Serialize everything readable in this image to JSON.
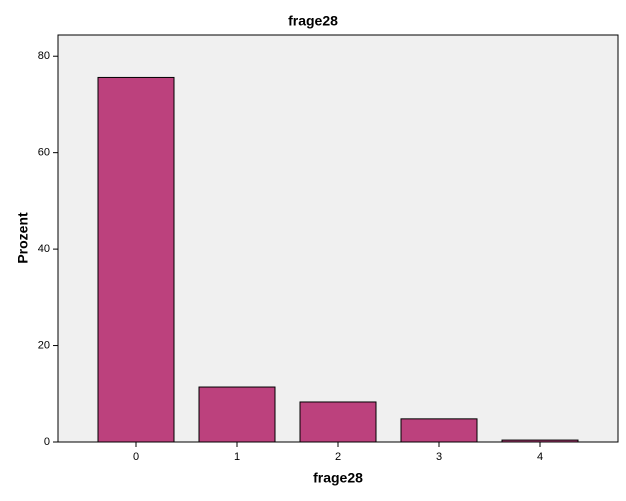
{
  "chart_data": {
    "type": "bar",
    "title": "frage28",
    "x_label": "frage28",
    "y_label": "Prozent",
    "categories": [
      "0",
      "1",
      "2",
      "3",
      "4"
    ],
    "values": [
      75.6,
      11.4,
      8.3,
      4.8,
      0.4
    ],
    "color": "#bc417d",
    "ylim": [
      0,
      84.4
    ],
    "yticks": [
      0,
      20,
      40,
      60,
      80
    ]
  }
}
